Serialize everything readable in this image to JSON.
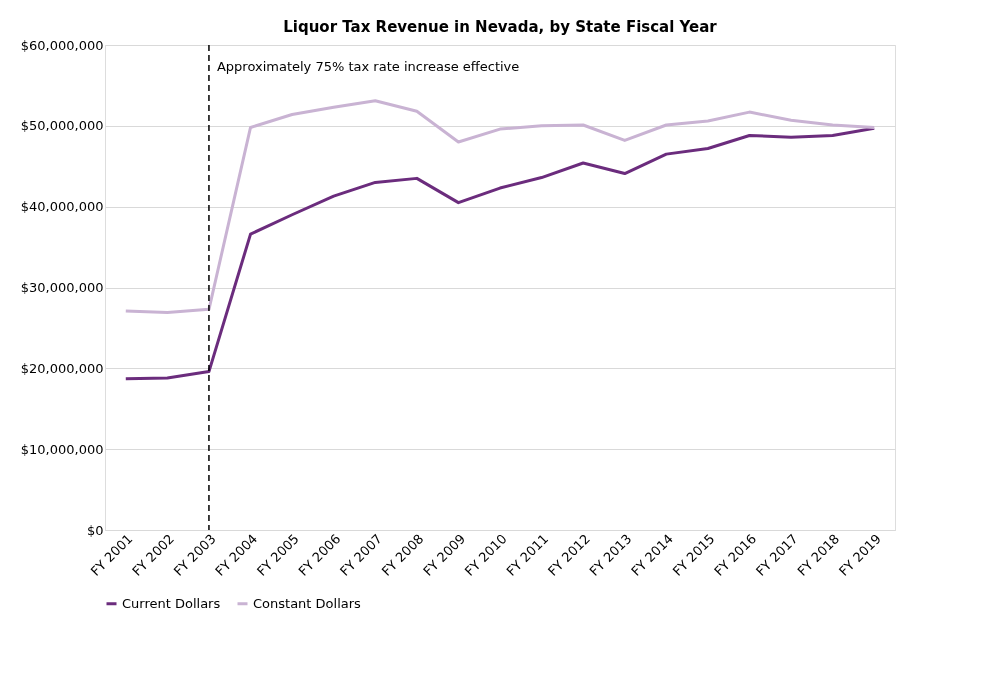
{
  "chart_data": {
    "type": "line",
    "title": "Liquor Tax Revenue in Nevada, by State Fiscal Year",
    "categories": [
      "FY 2001",
      "FY 2002",
      "FY 2003",
      "FY 2004",
      "FY 2005",
      "FY 2006",
      "FY 2007",
      "FY 2008",
      "FY 2009",
      "FY 2010",
      "FY 2011",
      "FY 2012",
      "FY 2013",
      "FY 2014",
      "FY 2015",
      "FY 2016",
      "FY 2017",
      "FY 2018",
      "FY 2019"
    ],
    "series": [
      {
        "name": "Current Dollars",
        "color": "#6b2c7d",
        "values": [
          18700000,
          18800000,
          19600000,
          36600000,
          39000000,
          41300000,
          43000000,
          43500000,
          40500000,
          42300000,
          43600000,
          45400000,
          44100000,
          46500000,
          47200000,
          48800000,
          48600000,
          48800000,
          49700000
        ]
      },
      {
        "name": "Constant Dollars",
        "color": "#c9b3d3",
        "values": [
          27100000,
          26900000,
          27300000,
          49800000,
          51400000,
          52300000,
          53100000,
          51800000,
          48000000,
          49600000,
          50000000,
          50100000,
          48200000,
          50100000,
          50600000,
          51700000,
          50700000,
          50100000,
          49800000
        ]
      }
    ],
    "ylim": [
      0,
      60000000
    ],
    "yticks": [
      {
        "value": 0,
        "label": "$0"
      },
      {
        "value": 10000000,
        "label": "$10,000,000"
      },
      {
        "value": 20000000,
        "label": "$20,000,000"
      },
      {
        "value": 30000000,
        "label": "$30,000,000"
      },
      {
        "value": 40000000,
        "label": "$40,000,000"
      },
      {
        "value": 50000000,
        "label": "$50,000,000"
      },
      {
        "value": 60000000,
        "label": "$60,000,000"
      }
    ],
    "ref_lines": [
      {
        "axis": "x",
        "value": "FY 2003",
        "label": "Approximately 75% tax rate increase effective",
        "color": "#000000",
        "line_style": "dashed"
      }
    ],
    "grid": "y",
    "legend": "bottom",
    "marker": "none",
    "line_style": "solid"
  }
}
